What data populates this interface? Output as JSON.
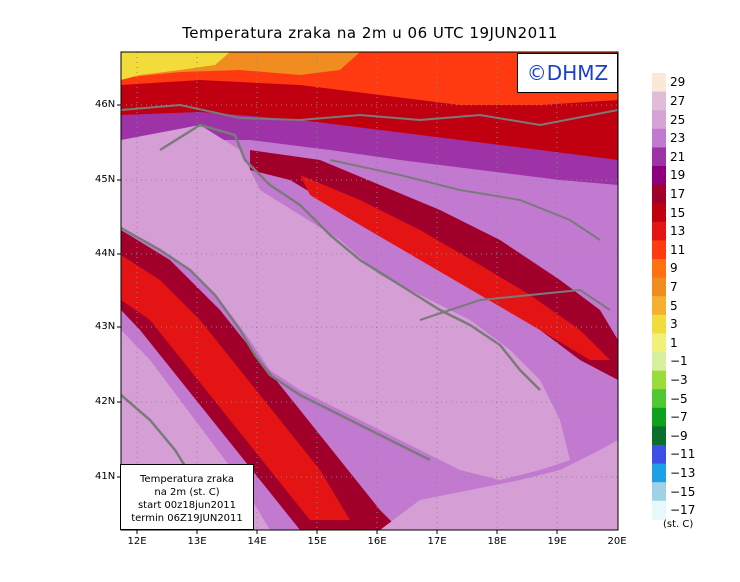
{
  "title": "Temperatura zraka na 2m u 06 UTC 19JUN2011",
  "logo": "©DHMZ",
  "info": {
    "line1": "Temperatura zraka",
    "line2": "na 2m (st. C)",
    "line3": "start 00z18jun2011",
    "line4": "termin 06Z19JUN2011"
  },
  "lat_labels": [
    "46N",
    "45N",
    "44N",
    "43N",
    "42N",
    "41N"
  ],
  "lon_labels": [
    "12E",
    "13E",
    "14E",
    "15E",
    "16E",
    "17E",
    "18E",
    "19E",
    "20E"
  ],
  "legend": {
    "unit": "(st. C)",
    "labels": [
      "29",
      "27",
      "25",
      "23",
      "21",
      "19",
      "17",
      "15",
      "13",
      "11",
      "9",
      "7",
      "5",
      "3",
      "1",
      "−1",
      "−3",
      "−5",
      "−7",
      "−9",
      "−11",
      "−13",
      "−15",
      "−17"
    ],
    "colors": [
      "#fae8d8",
      "#e0bcd8",
      "#d7a3d7",
      "#c27ad0",
      "#9e33a8",
      "#8c007c",
      "#a0002a",
      "#c00010",
      "#e41414",
      "#ff3a10",
      "#ff7010",
      "#f08c20",
      "#f5b030",
      "#f2dc3c",
      "#f0f07a",
      "#d6f0a0",
      "#9adc3c",
      "#50c832",
      "#0fa01e",
      "#0a6e2d",
      "#3c50e6",
      "#1ea0e6",
      "#a0d2e6",
      "#e6f8fa"
    ]
  },
  "colors": {
    "sea": "#d59fd6",
    "coast": "#7a7a7a"
  }
}
